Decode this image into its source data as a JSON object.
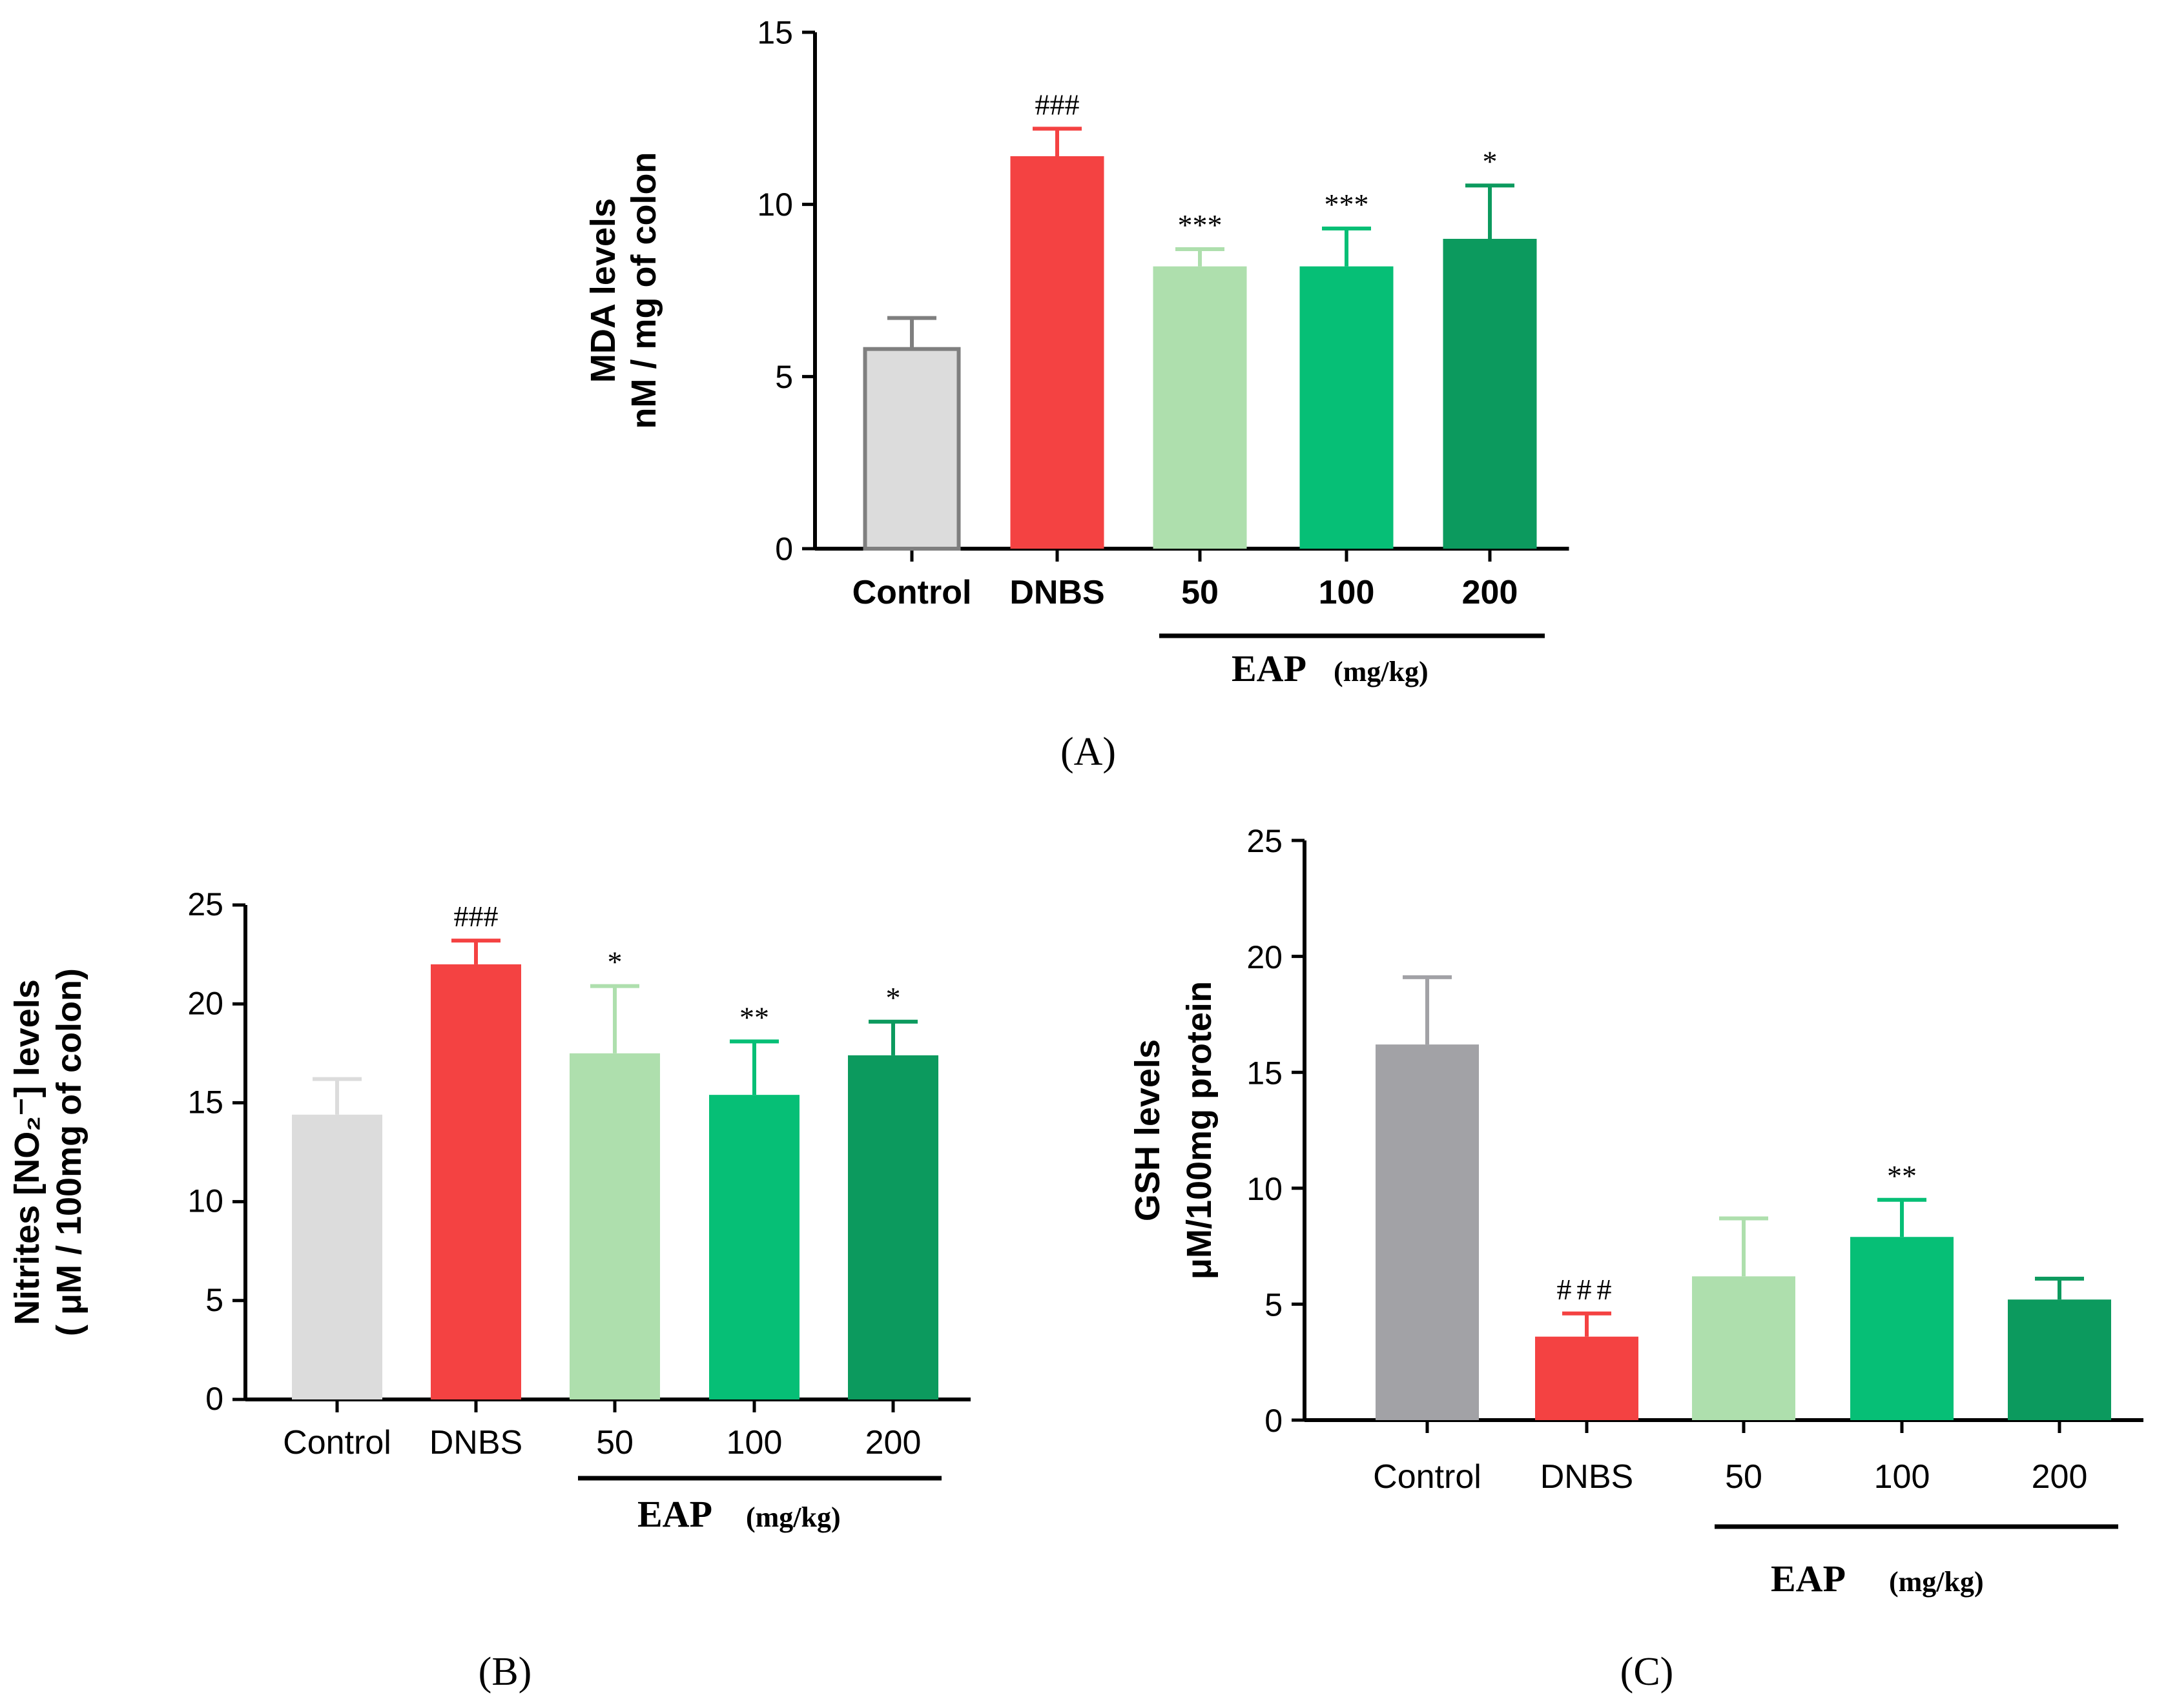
{
  "chart_data": [
    {
      "type": "bar",
      "panel": "(A)",
      "ylabel": [
        "MDA levels",
        "nM / mg of colon"
      ],
      "ylim": [
        0,
        15
      ],
      "yticks": [
        0,
        5,
        10,
        15
      ],
      "categories": [
        "Control",
        "DNBS",
        "50",
        "100",
        "200"
      ],
      "values": [
        5.8,
        11.4,
        8.2,
        8.2,
        9.0
      ],
      "errors": [
        0.9,
        0.8,
        0.5,
        1.1,
        1.55
      ],
      "significance": [
        "",
        "###",
        "***",
        "***",
        "*"
      ],
      "colors": [
        "#dcdcdc",
        "#f44242",
        "#aedfad",
        "#06bf76",
        "#0c9a5e"
      ],
      "edge_colors": [
        "#7f7f7f",
        "#f44242",
        "#aedfad",
        "#06bf76",
        "#0c9a5e"
      ],
      "group_label": "EAP",
      "group_unit": "(mg/kg)"
    },
    {
      "type": "bar",
      "panel": "(B)",
      "ylabel": [
        "Nitrites [NO₂⁻] levels",
        "( μM / 100mg of colon)"
      ],
      "ylim": [
        0,
        25
      ],
      "yticks": [
        0,
        5,
        10,
        15,
        20,
        25
      ],
      "categories": [
        "Control",
        "DNBS",
        "50",
        "100",
        "200"
      ],
      "values": [
        14.4,
        22.0,
        17.5,
        15.4,
        17.4
      ],
      "errors": [
        1.8,
        1.2,
        3.4,
        2.7,
        1.7
      ],
      "significance": [
        "",
        "###",
        "*",
        "**",
        "*"
      ],
      "colors": [
        "#dcdcdc",
        "#f44242",
        "#aedfad",
        "#06bf76",
        "#0c9a5e"
      ],
      "edge_colors": [
        "#dcdcdc",
        "#f44242",
        "#aedfad",
        "#06bf76",
        "#0c9a5e"
      ],
      "group_label": "EAP",
      "group_unit": "(mg/kg)"
    },
    {
      "type": "bar",
      "panel": "(C)",
      "ylabel": [
        "GSH levels",
        "μM/100mg protein"
      ],
      "ylim": [
        0,
        25
      ],
      "yticks": [
        0,
        5,
        10,
        15,
        20,
        25
      ],
      "categories": [
        "Control",
        "DNBS",
        "50",
        "100",
        "200"
      ],
      "values": [
        16.2,
        3.6,
        6.2,
        7.9,
        5.2
      ],
      "errors": [
        2.9,
        1.0,
        2.5,
        1.6,
        0.9
      ],
      "significance": [
        "",
        "###",
        "",
        "**",
        ""
      ],
      "colors": [
        "#a2a2a6",
        "#f44242",
        "#aedfad",
        "#06bf76",
        "#0c9a5e"
      ],
      "edge_colors": [
        "#a2a2a6",
        "#f44242",
        "#aedfad",
        "#06bf76",
        "#0c9a5e"
      ],
      "group_label": "EAP",
      "group_unit": "(mg/kg)"
    }
  ]
}
